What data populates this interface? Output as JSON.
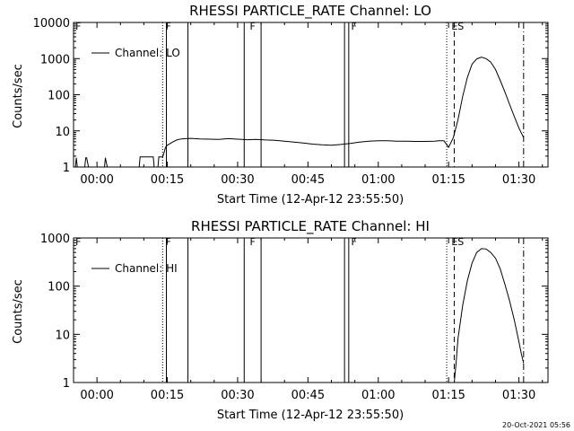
{
  "footer": {
    "timestamp": "20-Oct-2021 05:56"
  },
  "chart_data": [
    {
      "type": "line",
      "title": "RHESSI PARTICLE_RATE Channel: LO",
      "xlabel": "Start Time (12-Apr-12 23:55:50)",
      "ylabel": "Counts/sec",
      "y_scale": "log",
      "ylim": [
        1,
        10000
      ],
      "xlim_minutes_after_start": [
        -5,
        96.2
      ],
      "x_tick_labels": [
        "00:00",
        "00:15",
        "00:30",
        "00:45",
        "01:00",
        "01:15",
        "01:30"
      ],
      "x_tick_minutes": [
        0,
        15,
        30,
        45,
        60,
        75,
        90
      ],
      "y_tick_labels": [
        "1",
        "10",
        "100",
        "1000",
        "10000"
      ],
      "y_tick_values": [
        1,
        10,
        100,
        1000,
        10000
      ],
      "legend": {
        "entry": "Channel: LO",
        "placement": "top-left"
      },
      "flag_labels": [
        {
          "text": "F",
          "x_minute": 14.6
        },
        {
          "text": "F",
          "x_minute": 32.6
        },
        {
          "text": "F",
          "x_minute": 54.2
        },
        {
          "text": "F",
          "x_minute": -4.6
        },
        {
          "text": "ES",
          "x_minute": 75.6
        }
      ],
      "vlines": [
        {
          "x_minute": 14.0,
          "style": "dotted"
        },
        {
          "x_minute": 14.8,
          "style": "solid"
        },
        {
          "x_minute": 19.4,
          "style": "solid"
        },
        {
          "x_minute": 31.4,
          "style": "solid"
        },
        {
          "x_minute": 35.0,
          "style": "solid"
        },
        {
          "x_minute": 52.8,
          "style": "solid"
        },
        {
          "x_minute": 53.7,
          "style": "solid"
        },
        {
          "x_minute": 74.6,
          "style": "dotted"
        },
        {
          "x_minute": 76.2,
          "style": "dashed"
        },
        {
          "x_minute": 91.0,
          "style": "dashdot"
        }
      ],
      "series": [
        {
          "name": "Channel: LO",
          "x": [
            -5,
            -4.6,
            -4.4,
            -4.2,
            -3,
            -2.6,
            -2.4,
            -2.2,
            -1.8,
            -1.6,
            -1.2,
            0,
            1.6,
            1.8,
            2.2,
            9,
            9.2,
            12,
            12.2,
            13,
            13.2,
            14,
            14.3,
            14.6,
            15,
            16,
            17,
            18,
            19,
            20,
            22,
            24,
            26,
            28,
            30,
            32,
            34,
            36,
            38,
            40,
            42,
            44,
            46,
            48,
            50,
            52,
            54,
            56,
            58,
            60,
            62,
            64,
            66,
            68,
            70,
            72,
            73,
            74,
            75,
            76,
            77,
            78,
            79,
            80,
            81,
            82,
            83,
            84,
            85,
            86,
            87,
            88,
            89,
            90,
            91
          ],
          "values": [
            1,
            1,
            1.8,
            1,
            1,
            1,
            1.8,
            1.8,
            1,
            1,
            1,
            1,
            1,
            1.8,
            1,
            1,
            1.9,
            1.9,
            1,
            1,
            1.9,
            1.9,
            2.5,
            3.5,
            4.0,
            4.8,
            5.6,
            6.0,
            6.1,
            6.2,
            6.0,
            5.9,
            5.8,
            6.1,
            5.9,
            5.7,
            5.8,
            5.6,
            5.5,
            5.2,
            4.9,
            4.6,
            4.3,
            4.1,
            4.0,
            4.2,
            4.5,
            4.9,
            5.2,
            5.3,
            5.3,
            5.2,
            5.2,
            5.1,
            5.1,
            5.2,
            5.3,
            5.3,
            3.5,
            6.5,
            20,
            90,
            300,
            700,
            980,
            1100,
            1000,
            800,
            500,
            250,
            120,
            55,
            25,
            12,
            6.5
          ]
        }
      ]
    },
    {
      "type": "line",
      "title": "RHESSI PARTICLE_RATE Channel: HI",
      "xlabel": "Start Time (12-Apr-12 23:55:50)",
      "ylabel": "Counts/sec",
      "y_scale": "log",
      "ylim": [
        1,
        1000
      ],
      "xlim_minutes_after_start": [
        -5,
        96.2
      ],
      "x_tick_labels": [
        "00:00",
        "00:15",
        "00:30",
        "00:45",
        "01:00",
        "01:15",
        "01:30"
      ],
      "x_tick_minutes": [
        0,
        15,
        30,
        45,
        60,
        75,
        90
      ],
      "y_tick_labels": [
        "1",
        "10",
        "100",
        "1000"
      ],
      "y_tick_values": [
        1,
        10,
        100,
        1000
      ],
      "legend": {
        "entry": "Channel: HI",
        "placement": "top-left"
      },
      "flag_labels": [
        {
          "text": "F",
          "x_minute": 14.6
        },
        {
          "text": "F",
          "x_minute": 32.6
        },
        {
          "text": "F",
          "x_minute": 54.2
        },
        {
          "text": "F",
          "x_minute": -4.6
        },
        {
          "text": "ES",
          "x_minute": 75.6
        }
      ],
      "vlines": [
        {
          "x_minute": 14.0,
          "style": "dotted"
        },
        {
          "x_minute": 14.8,
          "style": "solid"
        },
        {
          "x_minute": 19.4,
          "style": "solid"
        },
        {
          "x_minute": 31.4,
          "style": "solid"
        },
        {
          "x_minute": 35.0,
          "style": "solid"
        },
        {
          "x_minute": 52.8,
          "style": "solid"
        },
        {
          "x_minute": 53.7,
          "style": "solid"
        },
        {
          "x_minute": 74.6,
          "style": "dotted"
        },
        {
          "x_minute": 76.2,
          "style": "dashed"
        },
        {
          "x_minute": 91.0,
          "style": "dashdot"
        }
      ],
      "series": [
        {
          "name": "Channel: HI",
          "x": [
            76.2,
            76.6,
            77,
            78,
            79,
            80,
            81,
            82,
            83,
            84,
            85,
            86,
            87,
            88,
            89,
            90,
            90.5,
            91
          ],
          "values": [
            1,
            2.5,
            8,
            40,
            130,
            300,
            500,
            600,
            590,
            500,
            380,
            230,
            110,
            50,
            20,
            7,
            4,
            2.5
          ]
        }
      ]
    }
  ]
}
